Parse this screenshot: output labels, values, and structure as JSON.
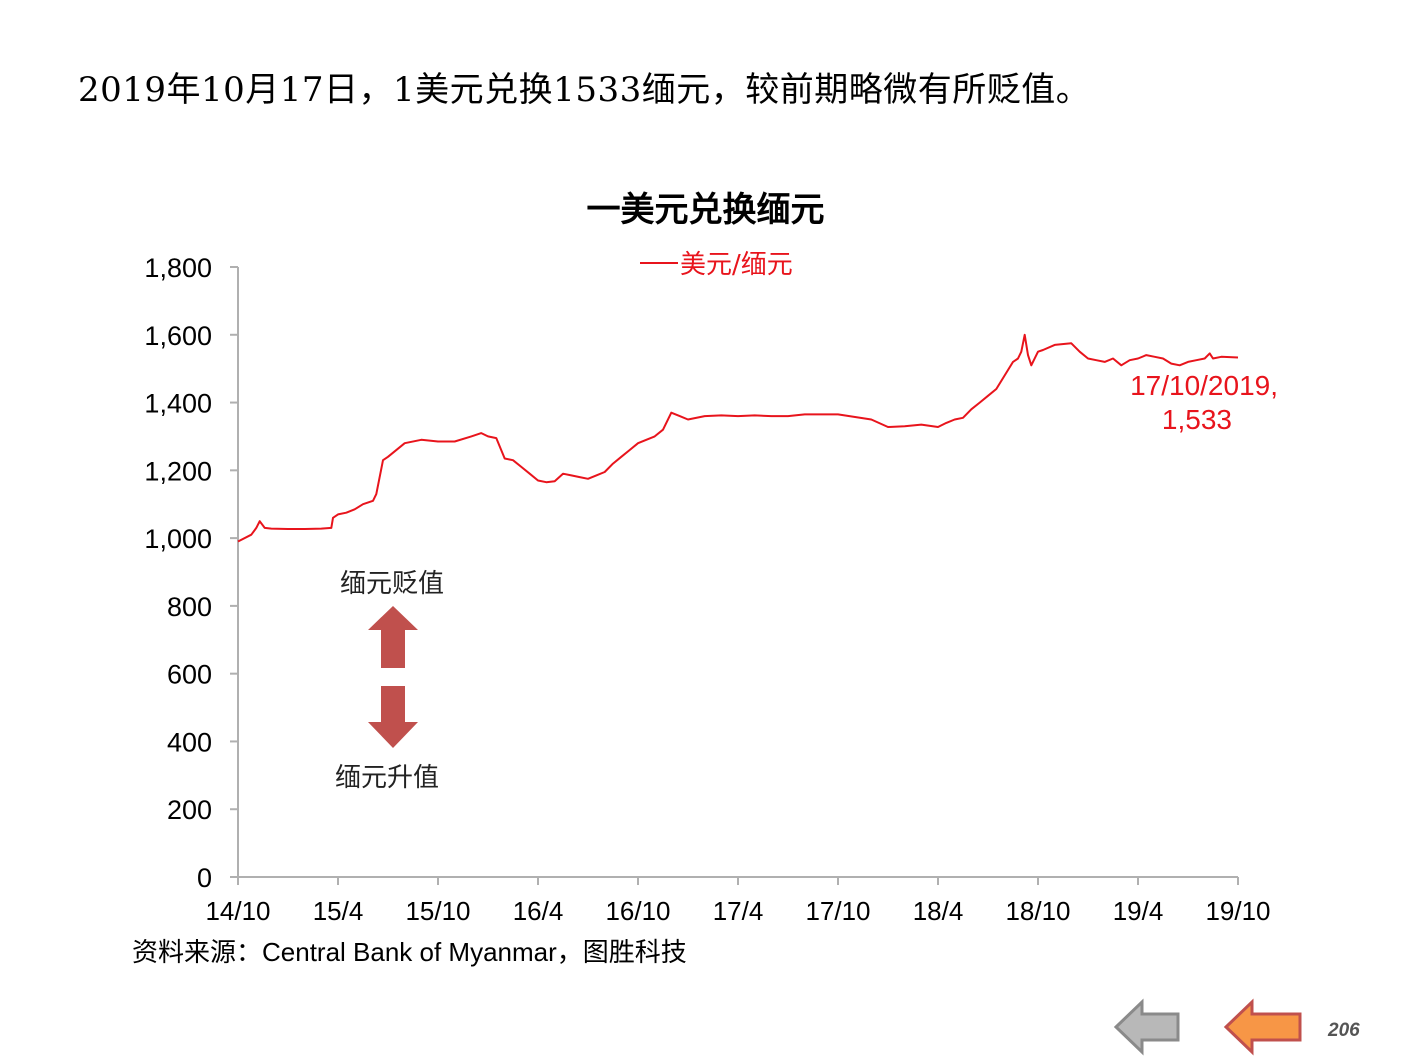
{
  "headline": "2019年10月17日，1美元兑换1533缅元，较前期略微有所贬值。",
  "source": "资料来源：Central Bank of Myanmar，图胜科技",
  "page_number": "206",
  "nav": {
    "prev_icon": "gray-left-arrow-icon",
    "next_icon": "orange-left-arrow-icon"
  },
  "chart_data": {
    "type": "line",
    "title": "一美元兑换缅元",
    "xlabel": "",
    "ylabel": "",
    "ylim": [
      0,
      1800
    ],
    "yticks": [
      0,
      200,
      400,
      600,
      800,
      1000,
      1200,
      1400,
      1600,
      1800
    ],
    "ytick_labels": [
      "0",
      "200",
      "400",
      "600",
      "800",
      "1,000",
      "1,200",
      "1,400",
      "1,600",
      "1,800"
    ],
    "xlim": [
      0,
      60
    ],
    "xticks": [
      0,
      6,
      12,
      18,
      24,
      30,
      36,
      42,
      48,
      54,
      60
    ],
    "xtick_labels": [
      "14/10",
      "15/4",
      "15/10",
      "16/4",
      "16/10",
      "17/4",
      "17/10",
      "18/4",
      "18/10",
      "19/4",
      "19/10"
    ],
    "legend": "top-center",
    "grid": false,
    "series": [
      {
        "name": "美元/缅元",
        "color": "#e8141c",
        "x": [
          0,
          0.8,
          1.1,
          1.3,
          1.6,
          2,
          3,
          4,
          5,
          5.6,
          5.7,
          6,
          6.5,
          7,
          7.5,
          8.1,
          8.3,
          8.7,
          9,
          10,
          11,
          12,
          13,
          14,
          14.6,
          15,
          15.5,
          16,
          16.5,
          17,
          17.5,
          18,
          18.5,
          19,
          19.5,
          20,
          20.5,
          21,
          21.5,
          22,
          22.5,
          23,
          23.5,
          24,
          24.5,
          25,
          25.5,
          26,
          26.5,
          27,
          28,
          29,
          30,
          31,
          32,
          33,
          34,
          35,
          36,
          38,
          39,
          40,
          41,
          42,
          42.5,
          43,
          43.5,
          44,
          44.5,
          45,
          45.5,
          46,
          46.5,
          46.8,
          47,
          47.2,
          47.4,
          47.6,
          48,
          48.3,
          49,
          50,
          50.5,
          51,
          51.5,
          52,
          52.5,
          53,
          53.5,
          54,
          54.5,
          55,
          55.5,
          56,
          56.5,
          57,
          57.5,
          58,
          58.3,
          58.5,
          59,
          60
        ],
        "y": [
          990,
          1010,
          1030,
          1050,
          1030,
          1028,
          1027,
          1027,
          1028,
          1030,
          1060,
          1070,
          1075,
          1085,
          1100,
          1110,
          1130,
          1230,
          1240,
          1280,
          1290,
          1285,
          1285,
          1300,
          1310,
          1300,
          1295,
          1235,
          1230,
          1210,
          1190,
          1170,
          1165,
          1168,
          1190,
          1185,
          1180,
          1175,
          1185,
          1195,
          1220,
          1240,
          1260,
          1280,
          1290,
          1300,
          1320,
          1370,
          1360,
          1350,
          1360,
          1362,
          1360,
          1362,
          1360,
          1360,
          1365,
          1365,
          1365,
          1350,
          1328,
          1330,
          1335,
          1328,
          1340,
          1350,
          1355,
          1380,
          1400,
          1420,
          1440,
          1480,
          1520,
          1530,
          1550,
          1600,
          1540,
          1510,
          1550,
          1555,
          1570,
          1575,
          1550,
          1530,
          1525,
          1520,
          1530,
          1510,
          1525,
          1530,
          1540,
          1535,
          1530,
          1515,
          1510,
          1520,
          1525,
          1530,
          1545,
          1530,
          1535,
          1533
        ]
      }
    ],
    "annotations": [
      {
        "text_line1": "17/10/2019,",
        "text_line2": "1,533",
        "x": 60,
        "y": 1533,
        "color": "#e8141c"
      },
      {
        "text": "缅元贬值",
        "direction": "up",
        "color": "#c0504d"
      },
      {
        "text": "缅元升值",
        "direction": "down",
        "color": "#c0504d"
      }
    ]
  }
}
